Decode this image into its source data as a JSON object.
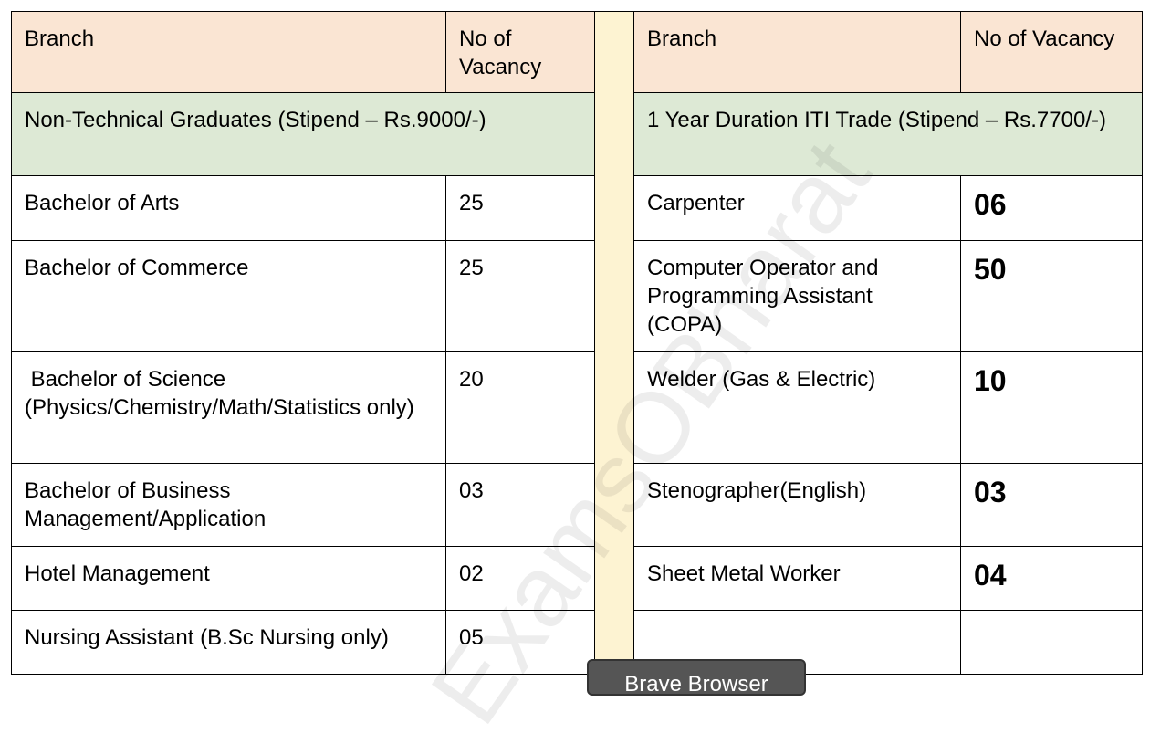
{
  "left": {
    "header": [
      "Branch",
      "No of Vacancy"
    ],
    "section": "Non-Technical Graduates (Stipend – Rs.9000/-)",
    "rows": [
      [
        "Bachelor of Arts",
        "25"
      ],
      [
        "Bachelor of Commerce",
        "25"
      ],
      [
        " Bachelor of Science (Physics/Chemistry/Math/Statistics only)",
        "20"
      ],
      [
        "Bachelor of Business Management/Application",
        "03"
      ],
      [
        "Hotel Management",
        "02"
      ],
      [
        "Nursing Assistant (B.Sc Nursing only)",
        "05"
      ]
    ]
  },
  "right": {
    "header": [
      "Branch",
      "No of Vacancy"
    ],
    "section": "1 Year Duration ITI Trade (Stipend – Rs.7700/-)",
    "rows": [
      [
        "Carpenter",
        "06"
      ],
      [
        "Computer Operator and Programming Assistant (COPA)",
        "50"
      ],
      [
        "Welder (Gas & Electric)",
        "10"
      ],
      [
        "Stenographer(English)",
        "03"
      ],
      [
        "Sheet Metal Worker",
        "04"
      ]
    ]
  },
  "watermark": "ExamsOBharat",
  "popup": "Brave Browser"
}
